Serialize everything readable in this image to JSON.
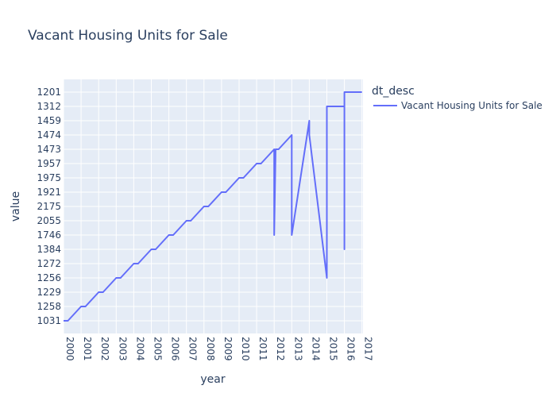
{
  "chart_data": {
    "type": "line",
    "title": "Vacant Housing Units for Sale",
    "xlabel": "year",
    "ylabel": "value",
    "x_ticks": [
      "2000",
      "2001",
      "2002",
      "2003",
      "2004",
      "2005",
      "2006",
      "2007",
      "2008",
      "2009",
      "2010",
      "2011",
      "2012",
      "2013",
      "2014",
      "2015",
      "2016",
      "2017"
    ],
    "y_categories": [
      "1031",
      "1258",
      "1229",
      "1256",
      "1272",
      "1384",
      "1746",
      "2055",
      "2175",
      "1921",
      "1975",
      "1957",
      "1473",
      "1474",
      "1459",
      "1312",
      "1201"
    ],
    "legend": {
      "title": "dt_desc",
      "placement": "top-right"
    },
    "grid": true,
    "series": [
      {
        "name": "Vacant Housing Units for Sale",
        "color": "#636efa",
        "points": [
          [
            "2000-01",
            "1031"
          ],
          [
            "2000-04",
            "1031"
          ],
          [
            "2001-01",
            "1258"
          ],
          [
            "2001-04",
            "1258"
          ],
          [
            "2002-01",
            "1229"
          ],
          [
            "2002-04",
            "1229"
          ],
          [
            "2003-01",
            "1256"
          ],
          [
            "2003-04",
            "1256"
          ],
          [
            "2004-01",
            "1272"
          ],
          [
            "2004-04",
            "1272"
          ],
          [
            "2005-01",
            "1384"
          ],
          [
            "2005-04",
            "1384"
          ],
          [
            "2006-01",
            "1746"
          ],
          [
            "2006-04",
            "1746"
          ],
          [
            "2007-01",
            "2055"
          ],
          [
            "2007-04",
            "2055"
          ],
          [
            "2008-01",
            "2175"
          ],
          [
            "2008-04",
            "2175"
          ],
          [
            "2009-01",
            "1921"
          ],
          [
            "2009-04",
            "1921"
          ],
          [
            "2010-01",
            "1975"
          ],
          [
            "2010-04",
            "1975"
          ],
          [
            "2011-01",
            "1957"
          ],
          [
            "2011-04",
            "1957"
          ],
          [
            "2012-01",
            "1473"
          ],
          [
            "2012-01",
            "1746"
          ],
          [
            "2012-02",
            "1473"
          ],
          [
            "2012-04",
            "1473"
          ],
          [
            "2013-01",
            "1474"
          ],
          [
            "2013-01",
            "1746"
          ],
          [
            "2014-01",
            "1459"
          ],
          [
            "2014-01",
            "1474"
          ],
          [
            "2015-01",
            "1256"
          ],
          [
            "2015-01",
            "1312"
          ],
          [
            "2015-04",
            "1312"
          ],
          [
            "2016-01",
            "1312"
          ],
          [
            "2016-01",
            "1384"
          ],
          [
            "2016-01",
            "1201"
          ],
          [
            "2017-01",
            "1201"
          ]
        ]
      }
    ]
  }
}
